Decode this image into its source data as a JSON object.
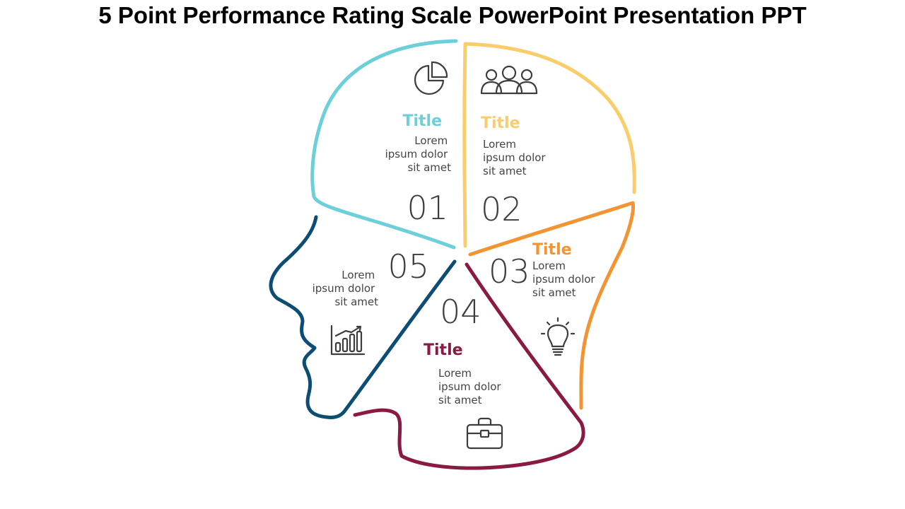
{
  "title": "5 Point Performance Rating Scale PowerPoint Presentation PPT",
  "colors": {
    "seg1": "#6dcfd9",
    "seg2": "#f9cd6b",
    "seg3": "#f39433",
    "seg4": "#8a1a44",
    "seg5": "#0d4d74",
    "icon": "#3d3d3d"
  },
  "segments": [
    {
      "number": "01",
      "title": "Title",
      "body": [
        "Lorem",
        "ipsum dolor",
        "sit amet"
      ],
      "icon": "pie-chart-icon"
    },
    {
      "number": "02",
      "title": "Title",
      "body": [
        "Lorem",
        "ipsum dolor",
        "sit amet"
      ],
      "icon": "people-icon"
    },
    {
      "number": "03",
      "title": "Title",
      "body": [
        "Lorem",
        "ipsum dolor",
        "sit amet"
      ],
      "icon": "lightbulb-icon"
    },
    {
      "number": "04",
      "title": "Title",
      "body": [
        "Lorem",
        "ipsum dolor",
        "sit amet"
      ],
      "icon": "briefcase-icon"
    },
    {
      "number": "05",
      "body": [
        "Lorem",
        "ipsum dolor",
        "sit amet"
      ],
      "icon": "bar-chart-icon"
    }
  ]
}
